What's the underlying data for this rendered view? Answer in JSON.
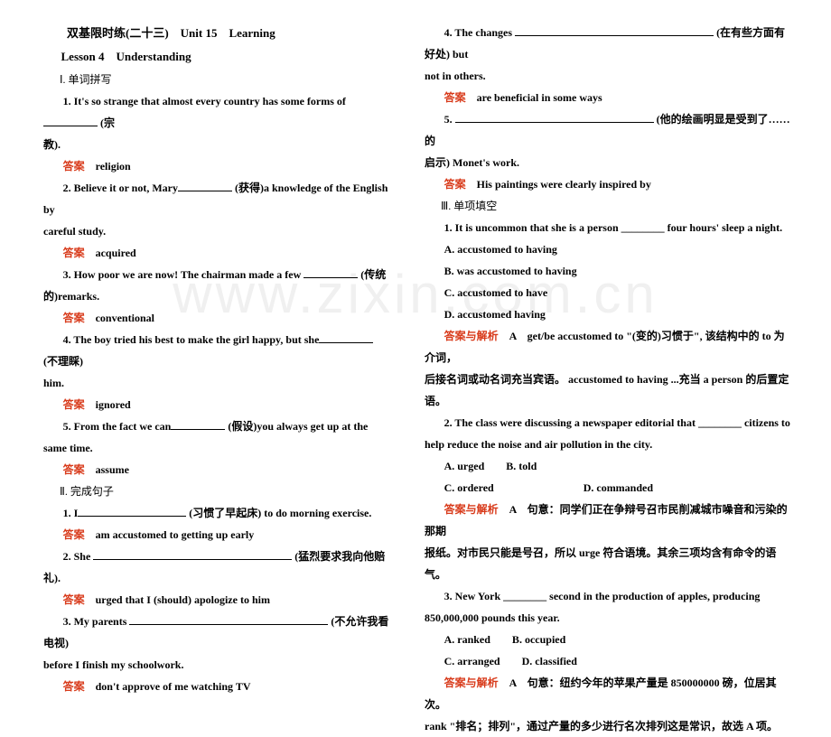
{
  "colors": {
    "text": "#000000",
    "red": "#d83a1a",
    "bg": "#ffffff",
    "watermark": "#f0f0f0"
  },
  "watermark": "www.zixin.com.cn",
  "left": {
    "heading1": "双基限时练(二十三)　Unit 15　Learning",
    "heading2": "Lesson 4　Understanding",
    "sec1": "Ⅰ. 单词拼写",
    "q1a": "1. It's so strange that almost every country has some forms of ",
    "q1b": " (宗",
    "q1c": "教).",
    "a1lbl": "答案",
    "a1": "　religion",
    "q2a": "2. Believe it or not, Mary",
    "q2b": " (获得)a knowledge of the English by",
    "q2c": "careful study.",
    "a2lbl": "答案",
    "a2": "　acquired",
    "q3a": "3. How poor we are now! The chairman made a few ",
    "q3b": " (传统",
    "q3c": "的)remarks.",
    "a3lbl": "答案",
    "a3": "　conventional",
    "q4a": "4. The boy tried his best to make the girl happy, but she",
    "q4b": " (不理睬)",
    "q4c": "him.",
    "a4lbl": "答案",
    "a4": "　ignored",
    "q5a": "5. From the fact we can",
    "q5b": " (假设)you always get up at the same time.",
    "a5lbl": "答案",
    "a5": "　assume",
    "sec2": "Ⅱ. 完成句子",
    "q6a": "1. I",
    "q6b": " (习惯了早起床) to do morning exercise.",
    "a6lbl": "答案",
    "a6": "　am accustomed to getting up early",
    "q7a": "2. She ",
    "q7b": " (猛烈要求我向他赔礼).",
    "a7lbl": "答案",
    "a7": "　urged that I (should) apologize to him",
    "q8a": "3. My parents ",
    "q8b": " (不允许我看电视)",
    "q8c": "before I finish my schoolwork.",
    "a8lbl": "答案",
    "a8": "　don't approve of me watching TV"
  },
  "right": {
    "q9a": "4. The changes ",
    "q9b": " (在有些方面有好处) but",
    "q9c": "not in others.",
    "a9lbl": "答案",
    "a9": "　are beneficial in some ways",
    "q10a": "5. ",
    "q10b": " (他的绘画明显是受到了……的",
    "q10c": "启示) Monet's work.",
    "a10lbl": "答案",
    "a10": "　His paintings were clearly inspired by",
    "sec3": "Ⅲ. 单项填空",
    "m1q": "1.  It is uncommon that she is a person ________ four hours' sleep a night.",
    "m1a": "A. accustomed to having",
    "m1b": "B. was accustomed to having",
    "m1c": "C. accustomed to have",
    "m1d": "D. accustomed having",
    "m1lbl": "答案与解析",
    "m1ans": "　A　get/be accustomed to \"(变的)习惯于\", 该结构中的 to 为介词，",
    "m1ans2": "后接名词或动名词充当宾语。 accustomed to having ...充当 a person 的后置定语。",
    "m2q1": "2.  The class were discussing a newspaper editorial that ________ citizens to",
    "m2q2": "help reduce the noise and air pollution in the city.",
    "m2a": "A. urged　　B. told",
    "m2c": "C. ordered　　　　　　　　   D. commanded",
    "m2lbl": "答案与解析",
    "m2ans": "　A　句意：同学们正在争辩号召市民削减城市噪音和污染的那期",
    "m2ans2": "报纸。对市民只能是号召，所以 urge 符合语境。其余三项均含有命令的语气。",
    "m3q1": "3.  New York ________ second in the production of apples, producing",
    "m3q2": "850,000,000 pounds this year.",
    "m3a": "A. ranked　　B. occupied",
    "m3c": "C. arranged　　D. classified",
    "m3lbl": "答案与解析",
    "m3ans": "　A　句意：纽约今年的苹果产量是 850000000 磅，位居其次。",
    "m3ans2": "rank \"排名；排列\"，通过产量的多少进行名次排列这是常识，故选 A 项。"
  }
}
